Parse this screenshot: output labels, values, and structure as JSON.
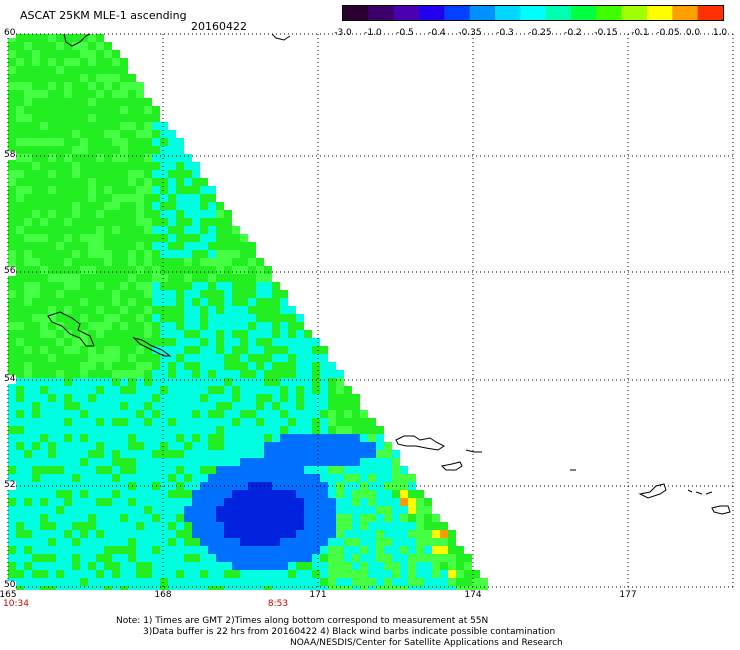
{
  "header": {
    "title": "ASCAT 25KM MLE-1 ascending",
    "date": "20160422"
  },
  "colorbar": {
    "colors": [
      "#2a0030",
      "#3b006a",
      "#4a00b0",
      "#2200ee",
      "#0040ff",
      "#0090ff",
      "#00d8ff",
      "#00ffff",
      "#00ffb0",
      "#00ff40",
      "#40ff00",
      "#a0ff00",
      "#ffff00",
      "#ffa000",
      "#ff3000"
    ],
    "labels": [
      "-3.0",
      "-1.0",
      "-0.5",
      "-0.4",
      "-0.35",
      "-0.3",
      "-0.25",
      "-0.2",
      "-0.15",
      "-0.1",
      "-0.05",
      "0.0",
      "1.0"
    ]
  },
  "map": {
    "lat_labels": [
      "60",
      "58",
      "56",
      "54",
      "52",
      "50"
    ],
    "lon_labels": [
      "165",
      "168",
      "171",
      "174",
      "177"
    ],
    "time_labels": [
      "10:34",
      "8:53"
    ],
    "field_colors": {
      "green": "#22ee22",
      "lightgreen": "#44ff44",
      "cyan": "#00ffe0",
      "deepblue": "#0022dd",
      "blue": "#0070ff",
      "yellow": "#ffff00",
      "orange": "#ff9900"
    }
  },
  "footer": {
    "note_line1": "Note: 1) Times are GMT 2)Times along bottom correspond to measurement at 55N",
    "note_line2": "3)Data buffer is 22 hrs from 20160422 4) Black wind barbs indicate possible contamination",
    "credit": "NOAA/NESDIS/Center for Satellite Applications and Research"
  }
}
